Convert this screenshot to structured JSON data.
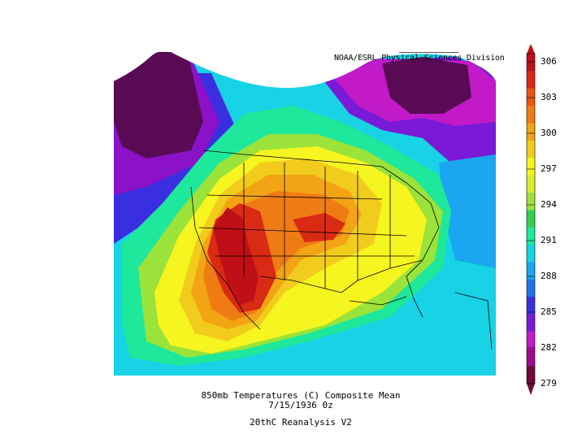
{
  "credit": "NOAA/ESRL Physical Sciences Division",
  "caption": {
    "line1": "850mb Temperatures (C)   Composite Mean",
    "line2": "7/15/1936 0z",
    "line3": "20thC Reanalysis V2"
  },
  "colorbar": {
    "ticks": [
      "306",
      "303",
      "300",
      "297",
      "294",
      "291",
      "288",
      "285",
      "282",
      "279"
    ],
    "colors": [
      "#6e0a33",
      "#9d0a8d",
      "#c219c9",
      "#7a1ad6",
      "#3a2fe0",
      "#1e73ea",
      "#1aa6f0",
      "#18d2e6",
      "#1de89b",
      "#34d04c",
      "#9be23a",
      "#d9ee2b",
      "#f6f51f",
      "#f2cc1c",
      "#f2a414",
      "#ef7b14",
      "#ea5512",
      "#d92a14",
      "#be1016"
    ]
  },
  "map": {
    "regions": {
      "far_west_ocean": "#18d2e6",
      "pacific_northwest_cool": "#8b12c8",
      "alaska_cold": "#5a0a55",
      "hudson_bay_cold": "#5a0a55",
      "great_plains_hot": "#ef7b14",
      "desert_sw_hottest": "#be1016",
      "mid_atlantic_warm": "#d9ee2b",
      "caribbean_mild": "#18d2e6"
    }
  }
}
